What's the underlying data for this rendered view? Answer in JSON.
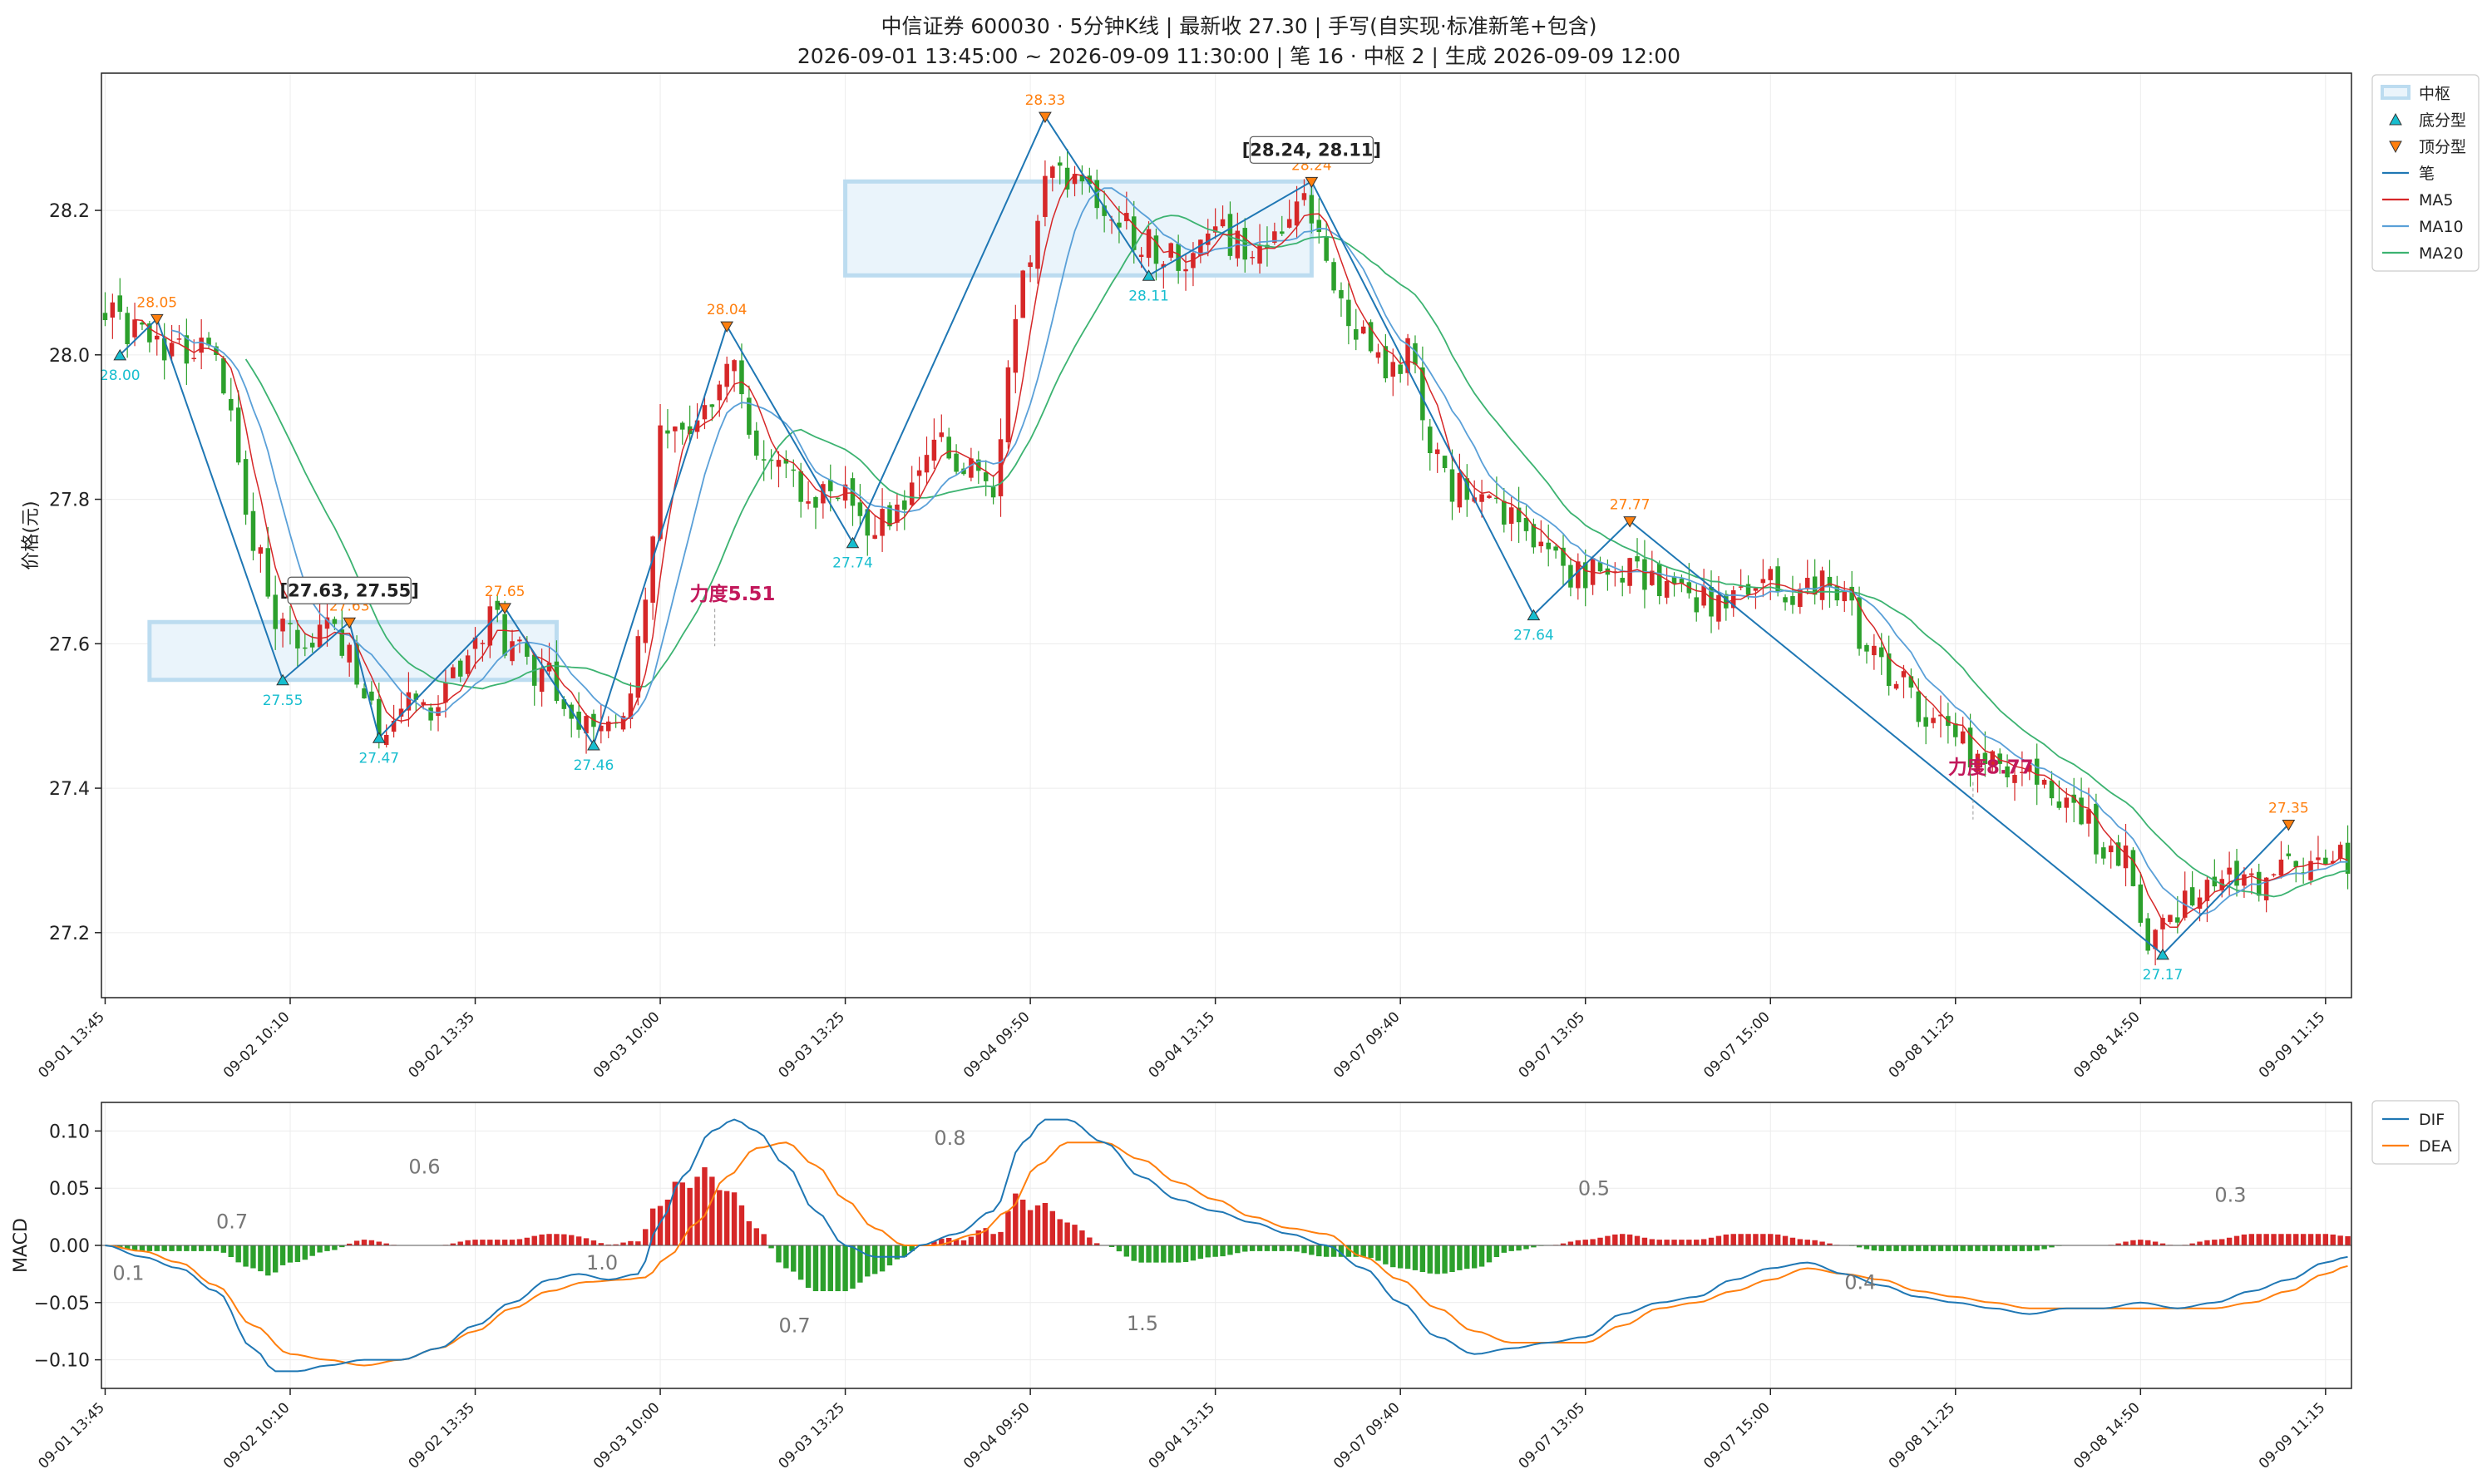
{
  "title": {
    "line1": "中信证券 600030 · 5分钟K线 | 最新收 27.30 | 手写(自实现·标准新笔+包含)",
    "line2": "2026-09-01 13:45:00 ~ 2026-09-09 11:30:00 | 笔 16 · 中枢 2 | 生成 2026-09-09 12:00"
  },
  "chart_data": [
    {
      "type": "candlestick",
      "ylabel": "价格(元)",
      "ylim": [
        27.11,
        28.39
      ],
      "yticks": [
        27.2,
        27.4,
        27.6,
        27.8,
        28.0,
        28.2
      ],
      "x_range": [
        0,
        303
      ],
      "xticks": [
        {
          "x": 0,
          "label": "09-01 13:45"
        },
        {
          "x": 25,
          "label": "09-02 10:10"
        },
        {
          "x": 50,
          "label": "09-02 13:35"
        },
        {
          "x": 75,
          "label": "09-03 10:00"
        },
        {
          "x": 100,
          "label": "09-03 13:25"
        },
        {
          "x": 125,
          "label": "09-04 09:50"
        },
        {
          "x": 150,
          "label": "09-04 13:15"
        },
        {
          "x": 175,
          "label": "09-07 09:40"
        },
        {
          "x": 200,
          "label": "09-07 13:05"
        },
        {
          "x": 225,
          "label": "09-07 15:00"
        },
        {
          "x": 250,
          "label": "09-08 11:25"
        },
        {
          "x": 275,
          "label": "09-08 14:50"
        },
        {
          "x": 300,
          "label": "09-09 11:15"
        }
      ],
      "price_anchors": [
        [
          0,
          28.07
        ],
        [
          5,
          28.02
        ],
        [
          8,
          28.0
        ],
        [
          12,
          28.0
        ],
        [
          14,
          28.02
        ],
        [
          17,
          27.9
        ],
        [
          20,
          27.75
        ],
        [
          24,
          27.62
        ],
        [
          27,
          27.6
        ],
        [
          30,
          27.62
        ],
        [
          33,
          27.58
        ],
        [
          37,
          27.49
        ],
        [
          40,
          27.52
        ],
        [
          44,
          27.5
        ],
        [
          48,
          27.55
        ],
        [
          52,
          27.63
        ],
        [
          55,
          27.6
        ],
        [
          59,
          27.56
        ],
        [
          63,
          27.5
        ],
        [
          66,
          27.48
        ],
        [
          70,
          27.52
        ],
        [
          73,
          27.66
        ],
        [
          75,
          27.88
        ],
        [
          78,
          27.9
        ],
        [
          82,
          27.92
        ],
        [
          85,
          28.0
        ],
        [
          88,
          27.85
        ],
        [
          92,
          27.84
        ],
        [
          96,
          27.8
        ],
        [
          100,
          27.8
        ],
        [
          104,
          27.76
        ],
        [
          107,
          27.78
        ],
        [
          110,
          27.84
        ],
        [
          113,
          27.88
        ],
        [
          116,
          27.85
        ],
        [
          120,
          27.8
        ],
        [
          122,
          27.97
        ],
        [
          124,
          28.1
        ],
        [
          126,
          28.2
        ],
        [
          128,
          28.26
        ],
        [
          132,
          28.24
        ],
        [
          136,
          28.19
        ],
        [
          140,
          28.16
        ],
        [
          143,
          28.14
        ],
        [
          146,
          28.14
        ],
        [
          150,
          28.17
        ],
        [
          154,
          28.15
        ],
        [
          158,
          28.16
        ],
        [
          162,
          28.2
        ],
        [
          164,
          28.16
        ],
        [
          167,
          28.07
        ],
        [
          170,
          28.02
        ],
        [
          173,
          27.97
        ],
        [
          176,
          28.0
        ],
        [
          179,
          27.86
        ],
        [
          182,
          27.82
        ],
        [
          185,
          27.8
        ],
        [
          188,
          27.79
        ],
        [
          191,
          27.76
        ],
        [
          194,
          27.74
        ],
        [
          197,
          27.7
        ],
        [
          200,
          27.7
        ],
        [
          203,
          27.72
        ],
        [
          206,
          27.7
        ],
        [
          210,
          27.69
        ],
        [
          214,
          27.66
        ],
        [
          218,
          27.66
        ],
        [
          222,
          27.69
        ],
        [
          226,
          27.68
        ],
        [
          229,
          27.66
        ],
        [
          232,
          27.7
        ],
        [
          235,
          27.66
        ],
        [
          238,
          27.6
        ],
        [
          242,
          27.55
        ],
        [
          246,
          27.51
        ],
        [
          250,
          27.46
        ],
        [
          254,
          27.43
        ],
        [
          258,
          27.42
        ],
        [
          262,
          27.4
        ],
        [
          266,
          27.38
        ],
        [
          270,
          27.32
        ],
        [
          273,
          27.3
        ],
        [
          276,
          27.2
        ],
        [
          279,
          27.23
        ],
        [
          282,
          27.26
        ],
        [
          286,
          27.27
        ],
        [
          290,
          27.27
        ],
        [
          293,
          27.28
        ],
        [
          296,
          27.29
        ],
        [
          299,
          27.29
        ],
        [
          302,
          27.3
        ]
      ],
      "bi_points": [
        {
          "x": 2,
          "y": 28.0,
          "kind": "bottom"
        },
        {
          "x": 7,
          "y": 28.05,
          "kind": "top"
        },
        {
          "x": 24,
          "y": 27.55,
          "kind": "bottom"
        },
        {
          "x": 33,
          "y": 27.63,
          "kind": "top"
        },
        {
          "x": 37,
          "y": 27.47,
          "kind": "bottom"
        },
        {
          "x": 54,
          "y": 27.65,
          "kind": "top"
        },
        {
          "x": 66,
          "y": 27.46,
          "kind": "bottom"
        },
        {
          "x": 84,
          "y": 28.04,
          "kind": "top"
        },
        {
          "x": 101,
          "y": 27.74,
          "kind": "bottom"
        },
        {
          "x": 127,
          "y": 28.33,
          "kind": "top"
        },
        {
          "x": 141,
          "y": 28.11,
          "kind": "bottom"
        },
        {
          "x": 163,
          "y": 28.24,
          "kind": "top"
        },
        {
          "x": 193,
          "y": 27.64,
          "kind": "bottom"
        },
        {
          "x": 206,
          "y": 27.77,
          "kind": "top"
        },
        {
          "x": 278,
          "y": 27.17,
          "kind": "bottom"
        },
        {
          "x": 295,
          "y": 27.35,
          "kind": "top"
        }
      ],
      "point_labels": [
        "28.00",
        "28.05",
        "27.55",
        "27.63",
        "27.47",
        "27.65",
        "27.46",
        "28.04",
        "27.74",
        "28.33",
        "28.11",
        "28.24",
        "27.64",
        "27.77",
        "27.17",
        "27.35"
      ],
      "zhongshu": [
        {
          "x0": 6,
          "x1": 61,
          "high": 27.63,
          "low": 27.55,
          "label": "[27.63, 27.55]"
        },
        {
          "x0": 100,
          "x1": 163,
          "high": 28.24,
          "low": 28.11,
          "label": "[28.24, 28.11]"
        }
      ],
      "force_labels": [
        {
          "x": 79,
          "y": 27.66,
          "label": "力度5.51"
        },
        {
          "x": 249,
          "y": 27.42,
          "label": "力度8.77"
        }
      ],
      "legend": [
        "中枢",
        "底分型",
        "顶分型",
        "笔",
        "MA5",
        "MA10",
        "MA20"
      ],
      "colors": {
        "up": "#d62728",
        "down": "#2ca02c",
        "bi": "#1f77b4",
        "ma5": "#d62728",
        "ma10": "#5aa0d8",
        "ma20": "#3cb371",
        "top": "#ff7f0e",
        "bottom": "#17becf",
        "zs_fill": "#eaf4fb",
        "zs_edge": "#bcdcf0",
        "force": "#c2185b"
      }
    },
    {
      "type": "macd",
      "ylabel": "MACD",
      "ylim": [
        -0.125,
        0.125
      ],
      "yticks": [
        -0.1,
        -0.05,
        0.0,
        0.05,
        0.1
      ],
      "ytick_labels": [
        "−0.10",
        "−0.05",
        "0.00",
        "0.05",
        "0.10"
      ],
      "dif_anchors": [
        [
          0,
          0.0
        ],
        [
          5,
          -0.01
        ],
        [
          10,
          -0.02
        ],
        [
          15,
          -0.04
        ],
        [
          20,
          -0.09
        ],
        [
          23,
          -0.11
        ],
        [
          26,
          -0.11
        ],
        [
          30,
          -0.105
        ],
        [
          35,
          -0.1
        ],
        [
          40,
          -0.1
        ],
        [
          45,
          -0.09
        ],
        [
          50,
          -0.07
        ],
        [
          55,
          -0.05
        ],
        [
          60,
          -0.03
        ],
        [
          64,
          -0.025
        ],
        [
          68,
          -0.03
        ],
        [
          72,
          -0.025
        ],
        [
          75,
          0.02
        ],
        [
          78,
          0.06
        ],
        [
          82,
          0.1
        ],
        [
          85,
          0.11
        ],
        [
          88,
          0.1
        ],
        [
          92,
          0.07
        ],
        [
          96,
          0.03
        ],
        [
          100,
          0.0
        ],
        [
          104,
          -0.01
        ],
        [
          108,
          -0.01
        ],
        [
          110,
          0.0
        ],
        [
          115,
          0.01
        ],
        [
          120,
          0.03
        ],
        [
          124,
          0.09
        ],
        [
          127,
          0.11
        ],
        [
          130,
          0.11
        ],
        [
          135,
          0.09
        ],
        [
          140,
          0.06
        ],
        [
          145,
          0.04
        ],
        [
          150,
          0.03
        ],
        [
          155,
          0.02
        ],
        [
          160,
          0.01
        ],
        [
          165,
          0.0
        ],
        [
          170,
          -0.02
        ],
        [
          175,
          -0.05
        ],
        [
          180,
          -0.08
        ],
        [
          185,
          -0.095
        ],
        [
          190,
          -0.09
        ],
        [
          195,
          -0.085
        ],
        [
          200,
          -0.08
        ],
        [
          205,
          -0.06
        ],
        [
          210,
          -0.05
        ],
        [
          215,
          -0.045
        ],
        [
          220,
          -0.03
        ],
        [
          225,
          -0.02
        ],
        [
          230,
          -0.015
        ],
        [
          235,
          -0.025
        ],
        [
          240,
          -0.035
        ],
        [
          245,
          -0.045
        ],
        [
          250,
          -0.05
        ],
        [
          255,
          -0.055
        ],
        [
          260,
          -0.06
        ],
        [
          265,
          -0.055
        ],
        [
          270,
          -0.055
        ],
        [
          275,
          -0.05
        ],
        [
          280,
          -0.055
        ],
        [
          285,
          -0.05
        ],
        [
          290,
          -0.04
        ],
        [
          295,
          -0.03
        ],
        [
          300,
          -0.015
        ],
        [
          303,
          -0.01
        ]
      ],
      "dea_anchors": [
        [
          0,
          0.0
        ],
        [
          5,
          -0.005
        ],
        [
          10,
          -0.015
        ],
        [
          15,
          -0.035
        ],
        [
          20,
          -0.07
        ],
        [
          25,
          -0.095
        ],
        [
          30,
          -0.1
        ],
        [
          35,
          -0.105
        ],
        [
          40,
          -0.1
        ],
        [
          45,
          -0.09
        ],
        [
          50,
          -0.075
        ],
        [
          55,
          -0.055
        ],
        [
          60,
          -0.04
        ],
        [
          65,
          -0.032
        ],
        [
          70,
          -0.03
        ],
        [
          73,
          -0.028
        ],
        [
          76,
          -0.01
        ],
        [
          80,
          0.02
        ],
        [
          84,
          0.06
        ],
        [
          88,
          0.085
        ],
        [
          92,
          0.09
        ],
        [
          96,
          0.07
        ],
        [
          100,
          0.04
        ],
        [
          104,
          0.015
        ],
        [
          108,
          0.0
        ],
        [
          112,
          0.0
        ],
        [
          118,
          0.01
        ],
        [
          122,
          0.03
        ],
        [
          126,
          0.07
        ],
        [
          130,
          0.09
        ],
        [
          135,
          0.09
        ],
        [
          140,
          0.075
        ],
        [
          145,
          0.055
        ],
        [
          150,
          0.04
        ],
        [
          155,
          0.025
        ],
        [
          160,
          0.015
        ],
        [
          165,
          0.01
        ],
        [
          170,
          -0.01
        ],
        [
          175,
          -0.03
        ],
        [
          180,
          -0.055
        ],
        [
          185,
          -0.075
        ],
        [
          190,
          -0.085
        ],
        [
          195,
          -0.085
        ],
        [
          200,
          -0.085
        ],
        [
          205,
          -0.07
        ],
        [
          210,
          -0.055
        ],
        [
          215,
          -0.05
        ],
        [
          220,
          -0.04
        ],
        [
          225,
          -0.03
        ],
        [
          230,
          -0.02
        ],
        [
          235,
          -0.025
        ],
        [
          240,
          -0.03
        ],
        [
          245,
          -0.04
        ],
        [
          250,
          -0.045
        ],
        [
          255,
          -0.05
        ],
        [
          260,
          -0.055
        ],
        [
          265,
          -0.055
        ],
        [
          270,
          -0.055
        ],
        [
          275,
          -0.055
        ],
        [
          280,
          -0.055
        ],
        [
          285,
          -0.055
        ],
        [
          290,
          -0.05
        ],
        [
          295,
          -0.04
        ],
        [
          300,
          -0.025
        ],
        [
          303,
          -0.018
        ]
      ],
      "area_labels": [
        {
          "x": 1,
          "y": -0.03,
          "label": "0.1"
        },
        {
          "x": 15,
          "y": 0.015,
          "label": "0.7"
        },
        {
          "x": 41,
          "y": 0.063,
          "label": "0.6"
        },
        {
          "x": 65,
          "y": -0.021,
          "label": "1.0"
        },
        {
          "x": 91,
          "y": -0.076,
          "label": "0.7"
        },
        {
          "x": 112,
          "y": 0.088,
          "label": "0.8"
        },
        {
          "x": 138,
          "y": -0.074,
          "label": "1.5"
        },
        {
          "x": 199,
          "y": 0.044,
          "label": "0.5"
        },
        {
          "x": 235,
          "y": -0.038,
          "label": "0.4"
        },
        {
          "x": 285,
          "y": 0.038,
          "label": "0.3"
        }
      ],
      "legend": [
        "DIF",
        "DEA"
      ],
      "colors": {
        "dif": "#1f77b4",
        "dea": "#ff7f0e",
        "hist_pos": "#d62728",
        "hist_neg": "#2ca02c"
      }
    }
  ]
}
